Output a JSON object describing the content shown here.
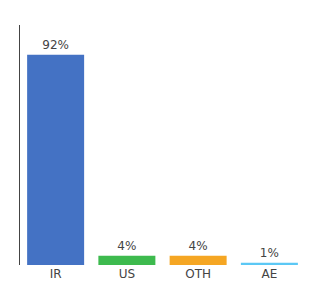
{
  "chart_data": {
    "type": "bar",
    "categories": [
      "IR",
      "US",
      "OTH",
      "AE"
    ],
    "values": [
      92,
      4,
      4,
      1
    ],
    "value_labels": [
      "92%",
      "4%",
      "4%",
      "1%"
    ],
    "data_labels": true,
    "colors": [
      "#4472c4",
      "#3dba4e",
      "#f5a623",
      "#5bc8f5"
    ],
    "ylim": [
      0,
      105
    ],
    "tick_labels": "x",
    "grid": false
  }
}
